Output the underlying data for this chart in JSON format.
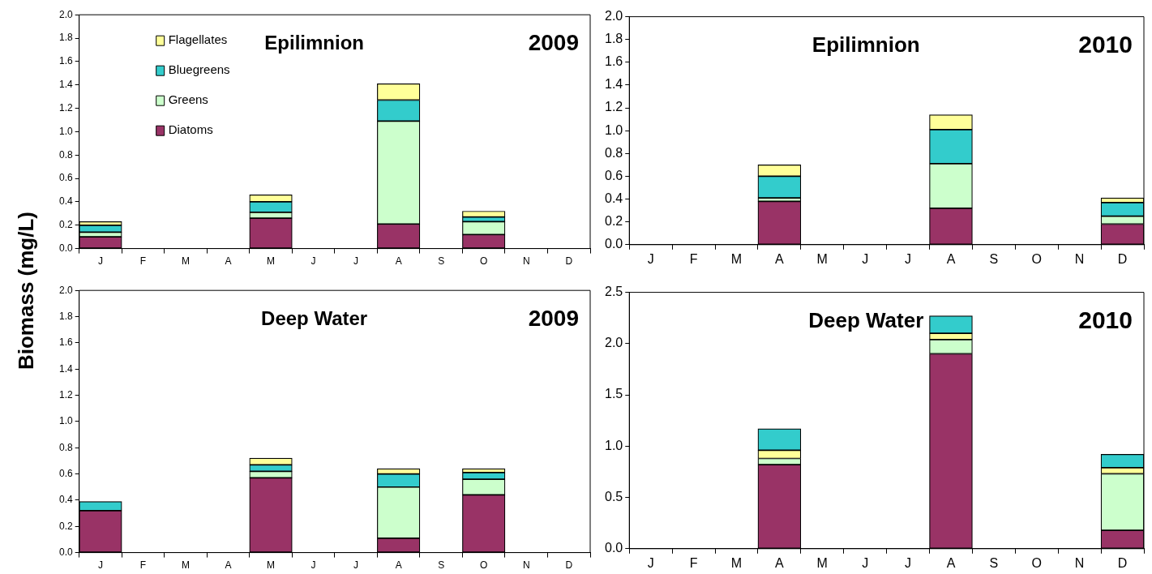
{
  "chart_data": [
    {
      "type": "bar",
      "title": "Epilimnion",
      "subtitle": "2009",
      "ylabel": "Biomass (mg/L)",
      "stacked": true,
      "legend": "top left",
      "categories": [
        "J",
        "F",
        "M",
        "A",
        "M",
        "J",
        "J",
        "A",
        "S",
        "O",
        "N",
        "D"
      ],
      "ylim": [
        0,
        2
      ],
      "yticks": [
        {
          "value": 0,
          "label": "0.0"
        },
        0.2,
        0.4,
        0.6,
        0.8,
        {
          "value": 1,
          "label": "1.0"
        },
        1.2,
        1.4,
        1.6,
        1.8,
        {
          "value": 2,
          "label": "2.0"
        }
      ],
      "series": [
        {
          "name": "Diatoms",
          "color": "#993366",
          "values": [
            0.1,
            null,
            null,
            null,
            0.26,
            null,
            null,
            0.21,
            null,
            0.12,
            null,
            null
          ]
        },
        {
          "name": "Greens",
          "color": "#ccffcc",
          "values": [
            0.04,
            null,
            null,
            null,
            0.05,
            null,
            null,
            0.88,
            null,
            0.11,
            null,
            null
          ]
        },
        {
          "name": "Bluegreens",
          "color": "#33cccc",
          "values": [
            0.06,
            null,
            null,
            null,
            0.09,
            null,
            null,
            0.18,
            null,
            0.04,
            null,
            null
          ]
        },
        {
          "name": "Flagellates",
          "color": "#ffff99",
          "values": [
            0.03,
            null,
            null,
            null,
            0.06,
            null,
            null,
            0.14,
            null,
            0.05,
            null,
            null
          ]
        }
      ]
    },
    {
      "type": "bar",
      "title": "Epilimnion",
      "subtitle": "2010",
      "stacked": true,
      "categories": [
        "J",
        "F",
        "M",
        "A",
        "M",
        "J",
        "J",
        "A",
        "S",
        "O",
        "N",
        "D"
      ],
      "ylim": [
        0,
        2
      ],
      "yticks": [
        {
          "value": 0,
          "label": "0.0"
        },
        0.2,
        0.4,
        0.6,
        0.8,
        {
          "value": 1,
          "label": "1.0"
        },
        1.2,
        1.4,
        1.6,
        1.8,
        {
          "value": 2,
          "label": "2.0"
        }
      ],
      "series": [
        {
          "color": "#993366",
          "values": [
            null,
            null,
            null,
            0.38,
            null,
            null,
            null,
            0.32,
            null,
            null,
            null,
            0.18
          ]
        },
        {
          "color": "#ccffcc",
          "values": [
            null,
            null,
            null,
            0.03,
            null,
            null,
            null,
            0.39,
            null,
            null,
            null,
            0.07
          ]
        },
        {
          "color": "#33cccc",
          "values": [
            null,
            null,
            null,
            0.19,
            null,
            null,
            null,
            0.3,
            null,
            null,
            null,
            0.12
          ]
        },
        {
          "color": "#ffff99",
          "values": [
            null,
            null,
            null,
            0.1,
            null,
            null,
            null,
            0.13,
            null,
            null,
            null,
            0.04
          ]
        }
      ]
    },
    {
      "type": "bar",
      "title": "Deep Water",
      "subtitle": "2009",
      "stacked": true,
      "categories": [
        "J",
        "F",
        "M",
        "A",
        "M",
        "J",
        "J",
        "A",
        "S",
        "O",
        "N",
        "D"
      ],
      "ylim": [
        0,
        2
      ],
      "yticks": [
        {
          "value": 0,
          "label": "0.0"
        },
        0.2,
        0.4,
        0.6,
        0.8,
        {
          "value": 1,
          "label": "1.0"
        },
        1.2,
        1.4,
        1.6,
        1.8,
        {
          "value": 2,
          "label": "2.0"
        }
      ],
      "series": [
        {
          "color": "#993366",
          "values": [
            0.32,
            null,
            null,
            null,
            0.57,
            null,
            null,
            0.11,
            null,
            0.44,
            null,
            null
          ]
        },
        {
          "color": "#ccffcc",
          "values": [
            null,
            null,
            null,
            null,
            0.05,
            null,
            null,
            0.39,
            null,
            0.12,
            null,
            null
          ]
        },
        {
          "color": "#33cccc",
          "values": [
            0.07,
            null,
            null,
            null,
            0.05,
            null,
            null,
            0.1,
            null,
            0.05,
            null,
            null
          ]
        },
        {
          "color": "#ffff99",
          "values": [
            null,
            null,
            null,
            null,
            0.05,
            null,
            null,
            0.04,
            null,
            0.03,
            null,
            null
          ]
        }
      ]
    },
    {
      "type": "bar",
      "title": "Deep Water",
      "subtitle": "2010",
      "stacked": true,
      "categories": [
        "J",
        "F",
        "M",
        "A",
        "M",
        "J",
        "J",
        "A",
        "S",
        "O",
        "N",
        "D"
      ],
      "ylim": [
        0,
        2.5
      ],
      "yticks": [
        {
          "value": 0,
          "label": "0.0"
        },
        0.5,
        {
          "value": 1,
          "label": "1.0"
        },
        1.5,
        {
          "value": 2,
          "label": "2.0"
        },
        2.5
      ],
      "series": [
        {
          "color": "#993366",
          "values": [
            null,
            null,
            null,
            0.82,
            null,
            null,
            null,
            1.9,
            null,
            null,
            null,
            0.18
          ]
        },
        {
          "color": "#ccffcc",
          "values": [
            null,
            null,
            null,
            0.06,
            null,
            null,
            null,
            0.14,
            null,
            null,
            null,
            0.55
          ]
        },
        {
          "color": "#ffff99",
          "values": [
            null,
            null,
            null,
            0.08,
            null,
            null,
            null,
            0.06,
            null,
            null,
            null,
            0.06
          ]
        },
        {
          "color": "#33cccc",
          "values": [
            null,
            null,
            null,
            0.21,
            null,
            null,
            null,
            0.17,
            null,
            null,
            null,
            0.13
          ]
        }
      ]
    }
  ]
}
